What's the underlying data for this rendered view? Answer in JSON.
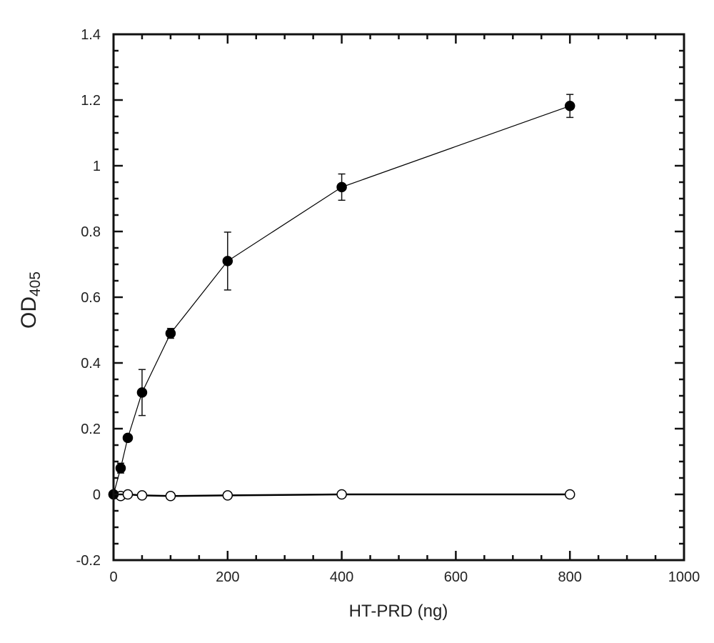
{
  "chart_data": {
    "type": "line",
    "title": "",
    "xlabel": "HT-PRD (ng)",
    "ylabel_main": "OD",
    "ylabel_sub": "405",
    "xlim": [
      0,
      1000
    ],
    "ylim": [
      -0.2,
      1.4
    ],
    "x_ticks": [
      0,
      200,
      400,
      600,
      800,
      1000
    ],
    "x_tick_labels": [
      "0",
      "200",
      "400",
      "600",
      "800",
      "1000"
    ],
    "y_ticks": [
      -0.2,
      0,
      0.2,
      0.4,
      0.6,
      0.8,
      1,
      1.2,
      1.4
    ],
    "y_tick_labels": [
      "-0.2",
      "0",
      "0.2",
      "0.4",
      "0.6",
      "0.8",
      "1",
      "1.2",
      "1.4"
    ],
    "x_minor_step": 50,
    "y_minor_step": 0.05,
    "grid": false,
    "series": [
      {
        "marker": "filled-circle",
        "color": "#000000",
        "x": [
          0,
          12.5,
          25,
          50,
          100,
          200,
          400,
          800
        ],
        "y": [
          0,
          0.08,
          0.172,
          0.31,
          0.49,
          0.71,
          0.935,
          1.182
        ],
        "error": [
          0,
          0.015,
          0.01,
          0.07,
          0.015,
          0.088,
          0.04,
          0.035
        ]
      },
      {
        "marker": "open-circle",
        "color": "#000000",
        "x": [
          0,
          12.5,
          25,
          50,
          100,
          200,
          400,
          800
        ],
        "y": [
          0,
          -0.005,
          0,
          -0.003,
          -0.005,
          -0.003,
          0,
          0
        ]
      }
    ]
  }
}
